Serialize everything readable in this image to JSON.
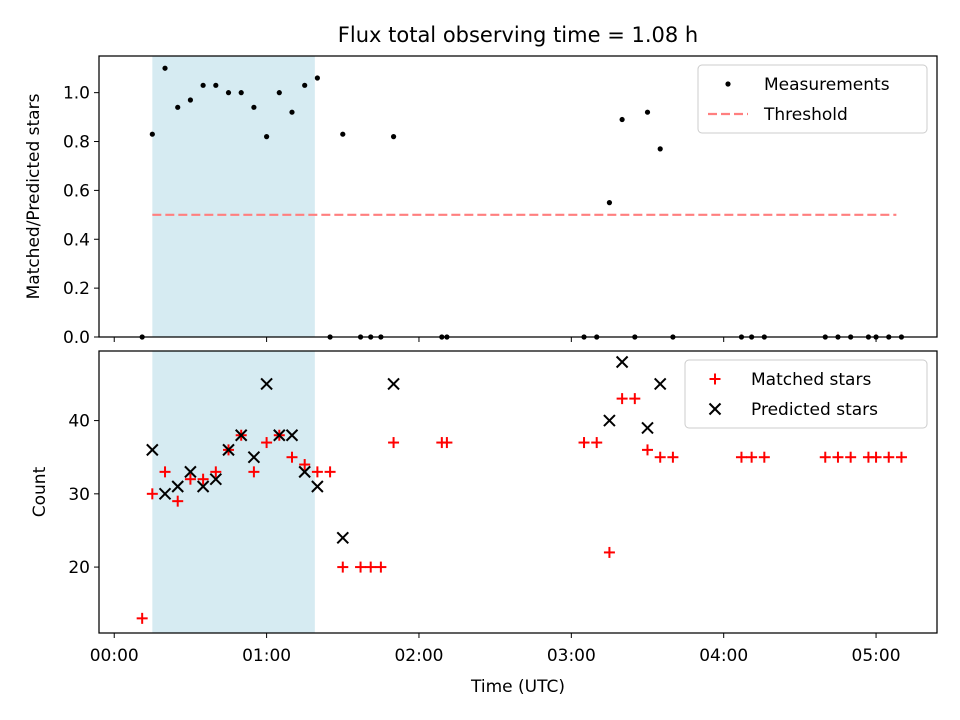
{
  "chart_data": [
    {
      "type": "scatter",
      "title": "Flux total observing time = 1.08 h",
      "xlabel": "",
      "ylabel": "Matched/Predicted stars",
      "xlim": [
        "-00:06",
        "05:24"
      ],
      "ylim": [
        0,
        1.15
      ],
      "yticks": [
        0.0,
        0.2,
        0.4,
        0.6,
        0.8,
        1.0
      ],
      "ytick_labels": [
        "0.0",
        "0.2",
        "0.4",
        "0.6",
        "0.8",
        "1.0"
      ],
      "grid": false,
      "legend_position": "top-right",
      "shaded_interval": [
        "00:15",
        "01:19"
      ],
      "series": [
        {
          "name": "Measurements",
          "kind": "points",
          "color": "#000000",
          "points": [
            [
              "00:11",
              0.0
            ],
            [
              "00:15",
              0.83
            ],
            [
              "00:20",
              1.1
            ],
            [
              "00:25",
              0.94
            ],
            [
              "00:30",
              0.97
            ],
            [
              "00:35",
              1.03
            ],
            [
              "00:40",
              1.03
            ],
            [
              "00:45",
              1.0
            ],
            [
              "00:50",
              1.0
            ],
            [
              "00:55",
              0.94
            ],
            [
              "01:00",
              0.82
            ],
            [
              "01:05",
              1.0
            ],
            [
              "01:10",
              0.92
            ],
            [
              "01:15",
              1.03
            ],
            [
              "01:20",
              1.06
            ],
            [
              "01:25",
              0.0
            ],
            [
              "01:30",
              0.83
            ],
            [
              "01:37",
              0.0
            ],
            [
              "01:41",
              0.0
            ],
            [
              "01:45",
              0.0
            ],
            [
              "01:50",
              0.82
            ],
            [
              "02:09",
              0.0
            ],
            [
              "02:11",
              0.0
            ],
            [
              "03:05",
              0.0
            ],
            [
              "03:10",
              0.0
            ],
            [
              "03:15",
              0.55
            ],
            [
              "03:20",
              0.89
            ],
            [
              "03:25",
              0.0
            ],
            [
              "03:30",
              0.92
            ],
            [
              "03:35",
              0.77
            ],
            [
              "03:40",
              0.0
            ],
            [
              "04:07",
              0.0
            ],
            [
              "04:11",
              0.0
            ],
            [
              "04:16",
              0.0
            ],
            [
              "04:40",
              0.0
            ],
            [
              "04:45",
              0.0
            ],
            [
              "04:50",
              0.0
            ],
            [
              "04:57",
              0.0
            ],
            [
              "05:00",
              0.0
            ],
            [
              "05:05",
              0.0
            ],
            [
              "05:10",
              0.0
            ]
          ]
        },
        {
          "name": "Threshold",
          "kind": "dashed-line",
          "color": "#ff7f7f",
          "points": [
            [
              "00:15",
              0.5
            ],
            [
              "05:08",
              0.5
            ]
          ]
        }
      ]
    },
    {
      "type": "scatter",
      "title": "",
      "xlabel": "Time (UTC)",
      "ylabel": "Count",
      "xlim": [
        "-00:06",
        "05:24"
      ],
      "ylim": [
        11,
        49.5
      ],
      "yticks": [
        20,
        30,
        40
      ],
      "ytick_labels": [
        "20",
        "30",
        "40"
      ],
      "xticks": [
        "00:00",
        "01:00",
        "02:00",
        "03:00",
        "04:00",
        "05:00"
      ],
      "xtick_labels": [
        "00:00",
        "01:00",
        "02:00",
        "03:00",
        "04:00",
        "05:00"
      ],
      "grid": false,
      "legend_position": "top-right",
      "shaded_interval": [
        "00:15",
        "01:19"
      ],
      "series": [
        {
          "name": "Matched stars",
          "marker": "plus",
          "color": "#ff0000",
          "points": [
            [
              "00:11",
              13
            ],
            [
              "00:15",
              30
            ],
            [
              "00:20",
              33
            ],
            [
              "00:25",
              29
            ],
            [
              "00:30",
              32
            ],
            [
              "00:35",
              32
            ],
            [
              "00:40",
              33
            ],
            [
              "00:45",
              36
            ],
            [
              "00:50",
              38
            ],
            [
              "00:55",
              33
            ],
            [
              "01:00",
              37
            ],
            [
              "01:05",
              38
            ],
            [
              "01:10",
              35
            ],
            [
              "01:15",
              34
            ],
            [
              "01:20",
              33
            ],
            [
              "01:25",
              33
            ],
            [
              "01:30",
              20
            ],
            [
              "01:37",
              20
            ],
            [
              "01:41",
              20
            ],
            [
              "01:45",
              20
            ],
            [
              "01:50",
              37
            ],
            [
              "02:09",
              37
            ],
            [
              "02:11",
              37
            ],
            [
              "03:05",
              37
            ],
            [
              "03:10",
              37
            ],
            [
              "03:15",
              22
            ],
            [
              "03:20",
              43
            ],
            [
              "03:25",
              43
            ],
            [
              "03:30",
              36
            ],
            [
              "03:35",
              35
            ],
            [
              "03:40",
              35
            ],
            [
              "04:07",
              35
            ],
            [
              "04:11",
              35
            ],
            [
              "04:16",
              35
            ],
            [
              "04:40",
              35
            ],
            [
              "04:45",
              35
            ],
            [
              "04:50",
              35
            ],
            [
              "04:57",
              35
            ],
            [
              "05:00",
              35
            ],
            [
              "05:05",
              35
            ],
            [
              "05:10",
              35
            ]
          ]
        },
        {
          "name": "Predicted stars",
          "marker": "x",
          "color": "#000000",
          "points": [
            [
              "00:15",
              36
            ],
            [
              "00:20",
              30
            ],
            [
              "00:25",
              31
            ],
            [
              "00:30",
              33
            ],
            [
              "00:35",
              31
            ],
            [
              "00:40",
              32
            ],
            [
              "00:45",
              36
            ],
            [
              "00:50",
              38
            ],
            [
              "00:55",
              35
            ],
            [
              "01:00",
              45
            ],
            [
              "01:05",
              38
            ],
            [
              "01:10",
              38
            ],
            [
              "01:15",
              33
            ],
            [
              "01:20",
              31
            ],
            [
              "01:30",
              24
            ],
            [
              "01:50",
              45
            ],
            [
              "03:15",
              40
            ],
            [
              "03:20",
              48
            ],
            [
              "03:30",
              39
            ],
            [
              "03:35",
              45
            ]
          ]
        }
      ]
    }
  ]
}
